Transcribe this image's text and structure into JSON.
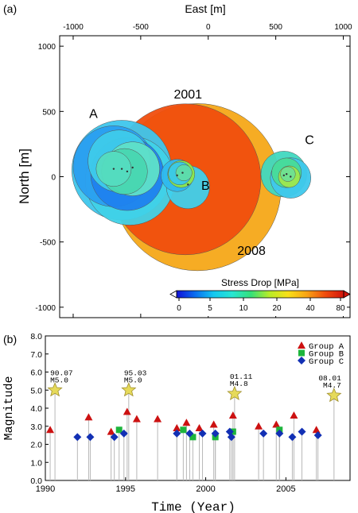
{
  "panel_labels": [
    "(a)",
    "(b)"
  ],
  "chart_data": [
    {
      "type": "scatter",
      "xlabel": "East [m]",
      "ylabel": "North [m]",
      "xlim": [
        -1100,
        1050
      ],
      "ylim": [
        -1080,
        1080
      ],
      "x_ticks": [
        -1000,
        -500,
        0,
        500,
        1000
      ],
      "y_ticks": [
        -1000,
        -500,
        0,
        500,
        1000
      ],
      "grid": false,
      "annotations": [
        {
          "text": "2001",
          "x": -150,
          "y": 600
        },
        {
          "text": "A",
          "x": -850,
          "y": 450
        },
        {
          "text": "B",
          "x": -20,
          "y": -100
        },
        {
          "text": "C",
          "x": 750,
          "y": 250
        },
        {
          "text": "2008",
          "x": 320,
          "y": -600
        }
      ],
      "ruptures": [
        {
          "x": -80,
          "y": -80,
          "r": 620,
          "color": "#f5a818"
        },
        {
          "x": -170,
          "y": -20,
          "r": 560,
          "color": "#f04e0e"
        },
        {
          "x": -640,
          "y": 50,
          "r": 370,
          "color": "#3ec6ec"
        },
        {
          "x": -580,
          "y": -30,
          "r": 330,
          "color": "#40d2e8"
        },
        {
          "x": -700,
          "y": 80,
          "r": 300,
          "color": "#2a9ff0"
        },
        {
          "x": -600,
          "y": 20,
          "r": 270,
          "color": "#1f82ee"
        },
        {
          "x": -660,
          "y": 120,
          "r": 230,
          "color": "#3ecbea"
        },
        {
          "x": -560,
          "y": 60,
          "r": 200,
          "color": "#5fe0c8"
        },
        {
          "x": -620,
          "y": 40,
          "r": 170,
          "color": "#48d6b0"
        },
        {
          "x": -700,
          "y": 60,
          "r": 130,
          "color": "#55dcc0"
        },
        {
          "x": -150,
          "y": -80,
          "r": 160,
          "color": "#3fd0ec"
        },
        {
          "x": -230,
          "y": 10,
          "r": 120,
          "color": "#2fb9ee"
        },
        {
          "x": -200,
          "y": 20,
          "r": 100,
          "color": "#8de84a"
        },
        {
          "x": -210,
          "y": 25,
          "r": 85,
          "color": "#38c8ec"
        },
        {
          "x": -180,
          "y": 30,
          "r": 60,
          "color": "#5fdca8"
        },
        {
          "x": 560,
          "y": 20,
          "r": 170,
          "color": "#40d8c0"
        },
        {
          "x": 610,
          "y": -10,
          "r": 150,
          "color": "#3ec8ec"
        },
        {
          "x": 580,
          "y": 30,
          "r": 110,
          "color": "#48dc98"
        },
        {
          "x": 600,
          "y": 0,
          "r": 80,
          "color": "#9ee84e"
        },
        {
          "x": 590,
          "y": 20,
          "r": 55,
          "color": "#6ee094"
        }
      ],
      "colorbar": {
        "label": "Stress Drop [MPa]",
        "ticks": [
          "0",
          "5",
          "10",
          "20",
          "40",
          "80"
        ],
        "colors": [
          "#1010d8",
          "#0a6ef0",
          "#14c8f0",
          "#28e6d2",
          "#34e07a",
          "#b8ec28",
          "#f8e018",
          "#f8a414",
          "#f04e0e",
          "#d2140c"
        ]
      }
    },
    {
      "type": "scatter",
      "xlabel": "Time (Year)",
      "ylabel": "Magnitude",
      "xlim": [
        1990,
        2009
      ],
      "ylim": [
        0.0,
        8.0
      ],
      "x_ticks": [
        1990,
        1995,
        2000,
        2005
      ],
      "y_ticks": [
        "0.0",
        "1.0",
        "2.0",
        "3.0",
        "4.0",
        "5.0",
        "6.0",
        "7.0",
        "8.0"
      ],
      "legend_position": "top-right",
      "series": [
        {
          "name": "Group A",
          "marker": "triangle",
          "color": "#cc1111",
          "x": [
            1990.3,
            1992.7,
            1994.1,
            1995.1,
            1995.7,
            1997.0,
            1998.2,
            1998.8,
            1999.6,
            2000.5,
            2001.7,
            2003.3,
            2004.4,
            2005.5,
            2006.9
          ],
          "y": [
            2.8,
            3.5,
            2.7,
            3.8,
            3.4,
            3.4,
            2.9,
            3.2,
            2.9,
            3.1,
            3.6,
            3.0,
            3.1,
            3.6,
            2.8
          ]
        },
        {
          "name": "Group B",
          "marker": "square",
          "color": "#1db53c",
          "x": [
            1994.6,
            1998.6,
            1999.2,
            2000.6,
            2001.7,
            2004.6
          ],
          "y": [
            2.8,
            2.8,
            2.4,
            2.4,
            2.7,
            2.8
          ]
        },
        {
          "name": "Group C",
          "marker": "diamond",
          "color": "#1230b4",
          "x": [
            1992.0,
            1992.8,
            1994.3,
            1994.9,
            1998.2,
            1999.0,
            1999.8,
            2000.6,
            2001.5,
            2001.6,
            2003.6,
            2004.6,
            2005.4,
            2006.0,
            2007.0
          ],
          "y": [
            2.4,
            2.4,
            2.4,
            2.6,
            2.6,
            2.6,
            2.6,
            2.6,
            2.7,
            2.4,
            2.6,
            2.6,
            2.4,
            2.7,
            2.5
          ]
        }
      ],
      "stars": [
        {
          "x": 1990.6,
          "y": 5.0,
          "label1": "90.07",
          "label2": "M5.0"
        },
        {
          "x": 1995.2,
          "y": 5.0,
          "label1": "95.03",
          "label2": "M5.0"
        },
        {
          "x": 2001.8,
          "y": 4.8,
          "label1": "01.11",
          "label2": "M4.8"
        },
        {
          "x": 2008.0,
          "y": 4.7,
          "label1": "08.01",
          "label2": "M4.7"
        }
      ]
    }
  ]
}
